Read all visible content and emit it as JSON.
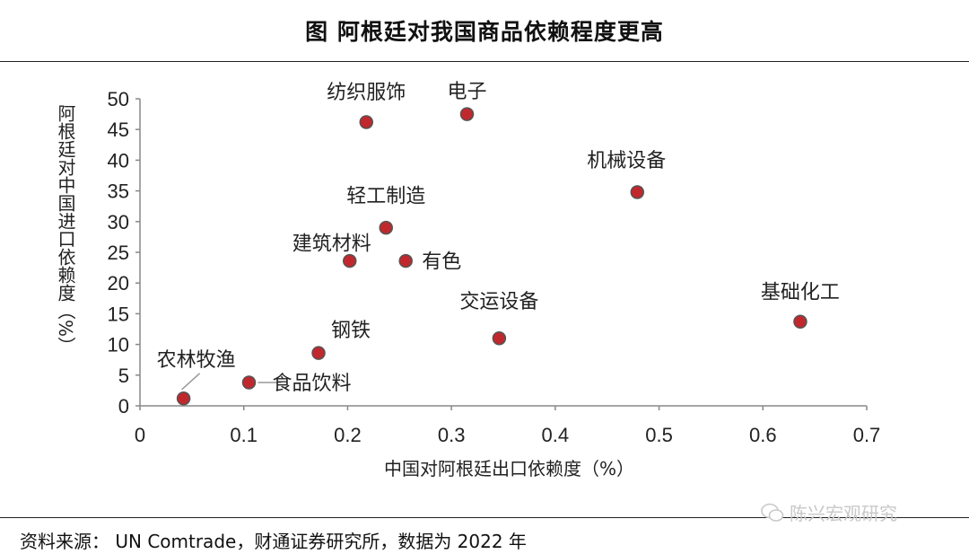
{
  "header": {
    "title": "图  阿根廷对我国商品依赖程度更高"
  },
  "footer": {
    "source": "资料来源： UN Comtrade，财通证券研究所，数据为 2022 年",
    "watermark": "陈兴宏观研究"
  },
  "chart_data": {
    "type": "scatter",
    "xlabel": "中国对阿根廷出口依赖度（%）",
    "ylabel": "阿根廷对中国进口依赖度（%）",
    "xlim": [
      0,
      0.7
    ],
    "ylim": [
      0,
      50
    ],
    "x_ticks": [
      "0",
      "0.1",
      "0.2",
      "0.3",
      "0.4",
      "0.5",
      "0.6",
      "0.7"
    ],
    "y_ticks": [
      "0",
      "5",
      "10",
      "15",
      "20",
      "25",
      "30",
      "35",
      "40",
      "45",
      "50"
    ],
    "grid": false,
    "marker_color": "#c0282d",
    "marker_edge": "#555555",
    "points": [
      {
        "label": "纺织服饰",
        "x": 0.218,
        "y": 46.2
      },
      {
        "label": "电子",
        "x": 0.315,
        "y": 47.5
      },
      {
        "label": "机械设备",
        "x": 0.479,
        "y": 34.8
      },
      {
        "label": "轻工制造",
        "x": 0.237,
        "y": 29.0
      },
      {
        "label": "建筑材料",
        "x": 0.202,
        "y": 23.6
      },
      {
        "label": "有色",
        "x": 0.256,
        "y": 23.6
      },
      {
        "label": "基础化工",
        "x": 0.636,
        "y": 13.7
      },
      {
        "label": "交运设备",
        "x": 0.346,
        "y": 11.0
      },
      {
        "label": "钢铁",
        "x": 0.172,
        "y": 8.6
      },
      {
        "label": "农林牧渔",
        "x": 0.042,
        "y": 1.2
      },
      {
        "label": "食品饮料",
        "x": 0.105,
        "y": 3.8
      }
    ]
  }
}
